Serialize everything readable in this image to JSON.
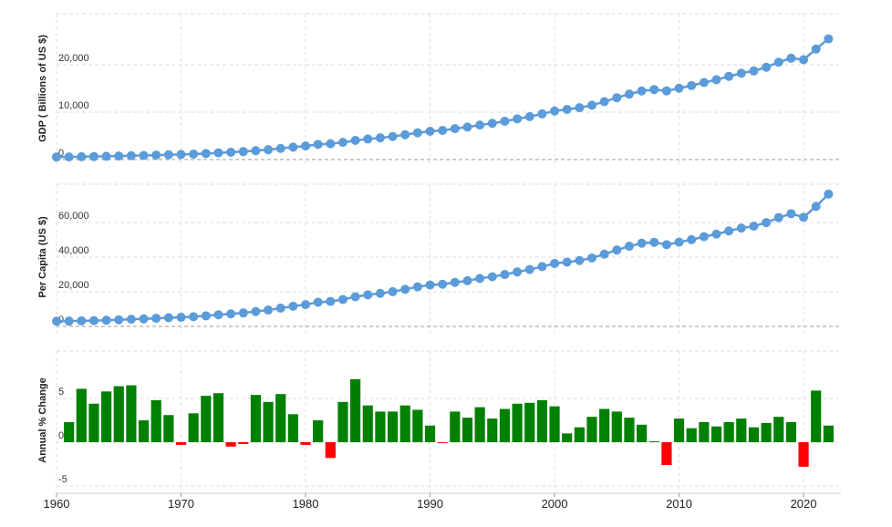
{
  "chart_data": [
    {
      "type": "line",
      "ylabel": "GDP ( Billions of US $)",
      "color": "#5b9bd9",
      "x": [
        1960,
        1961,
        1962,
        1963,
        1964,
        1965,
        1966,
        1967,
        1968,
        1969,
        1970,
        1971,
        1972,
        1973,
        1974,
        1975,
        1976,
        1977,
        1978,
        1979,
        1980,
        1981,
        1982,
        1983,
        1984,
        1985,
        1986,
        1987,
        1988,
        1989,
        1990,
        1991,
        1992,
        1993,
        1994,
        1995,
        1996,
        1997,
        1998,
        1999,
        2000,
        2001,
        2002,
        2003,
        2004,
        2005,
        2006,
        2007,
        2008,
        2009,
        2010,
        2011,
        2012,
        2013,
        2014,
        2015,
        2016,
        2017,
        2018,
        2019,
        2020,
        2021,
        2022
      ],
      "values": [
        543,
        563,
        605,
        638,
        686,
        744,
        815,
        862,
        943,
        1019,
        1073,
        1165,
        1282,
        1428,
        1549,
        1689,
        1877,
        2086,
        2357,
        2632,
        2857,
        3207,
        3343,
        3634,
        4037,
        4339,
        4580,
        4855,
        5236,
        5642,
        5963,
        6158,
        6520,
        6859,
        7287,
        7640,
        8073,
        8578,
        9063,
        9631,
        10251,
        10582,
        10936,
        11458,
        12214,
        13037,
        13815,
        14475,
        14770,
        14478,
        15049,
        15600,
        16254,
        16843,
        17551,
        18206,
        18695,
        19477,
        20533,
        21381,
        21060,
        23315,
        25464
      ],
      "xlim": [
        1960,
        2023
      ],
      "ylim": [
        0,
        30000
      ],
      "yticks": [
        0,
        {
          "value": 10000,
          "label": "10,000"
        },
        {
          "value": 20000,
          "label": "20,000"
        }
      ],
      "grid": true
    },
    {
      "type": "line",
      "ylabel": "Per Capita (US $)",
      "color": "#5b9bd9",
      "x": [
        1960,
        1961,
        1962,
        1963,
        1964,
        1965,
        1966,
        1967,
        1968,
        1969,
        1970,
        1971,
        1972,
        1973,
        1974,
        1975,
        1976,
        1977,
        1978,
        1979,
        1980,
        1981,
        1982,
        1983,
        1984,
        1985,
        1986,
        1987,
        1988,
        1989,
        1990,
        1991,
        1992,
        1993,
        1994,
        1995,
        1996,
        1997,
        1998,
        1999,
        2000,
        2001,
        2002,
        2003,
        2004,
        2005,
        2006,
        2007,
        2008,
        2009,
        2010,
        2011,
        2012,
        2013,
        2014,
        2015,
        2016,
        2017,
        2018,
        2019,
        2020,
        2021,
        2022
      ],
      "values": [
        3007,
        3067,
        3244,
        3375,
        3574,
        3828,
        4146,
        4336,
        4696,
        5032,
        5234,
        5609,
        6094,
        6726,
        7226,
        7801,
        8592,
        9453,
        10565,
        11674,
        12575,
        13976,
        14434,
        15544,
        17121,
        18237,
        19071,
        20039,
        21417,
        22857,
        23889,
        24342,
        25419,
        26387,
        27695,
        28691,
        29968,
        31459,
        32854,
        34515,
        36330,
        37134,
        38023,
        39496,
        41713,
        44115,
        46299,
        48050,
        48570,
        47195,
        48651,
        50066,
        51784,
        53291,
        55124,
        56763,
        57867,
        59915,
        62805,
        65095,
        63028,
        69288,
        76399
      ],
      "xlim": [
        1960,
        2023
      ],
      "ylim": [
        0,
        80000
      ],
      "yticks": [
        0,
        {
          "value": 20000,
          "label": "20,000"
        },
        {
          "value": 40000,
          "label": "40,000"
        },
        {
          "value": 60000,
          "label": "60,000"
        }
      ],
      "grid": true
    },
    {
      "type": "bar",
      "ylabel": "Annual % Change",
      "color": "#008000",
      "negative_color": "#ff0000",
      "x": [
        1961,
        1962,
        1963,
        1964,
        1965,
        1966,
        1967,
        1968,
        1969,
        1970,
        1971,
        1972,
        1973,
        1974,
        1975,
        1976,
        1977,
        1978,
        1979,
        1980,
        1981,
        1982,
        1983,
        1984,
        1985,
        1986,
        1987,
        1988,
        1989,
        1990,
        1991,
        1992,
        1993,
        1994,
        1995,
        1996,
        1997,
        1998,
        1999,
        2000,
        2001,
        2002,
        2003,
        2004,
        2005,
        2006,
        2007,
        2008,
        2009,
        2010,
        2011,
        2012,
        2013,
        2014,
        2015,
        2016,
        2017,
        2018,
        2019,
        2020,
        2021,
        2022
      ],
      "values": [
        2.3,
        6.1,
        4.4,
        5.8,
        6.4,
        6.5,
        2.5,
        4.8,
        3.1,
        -0.3,
        3.3,
        5.3,
        5.6,
        -0.5,
        -0.2,
        5.4,
        4.6,
        5.5,
        3.2,
        -0.3,
        2.5,
        -1.8,
        4.6,
        7.2,
        4.2,
        3.5,
        3.5,
        4.2,
        3.7,
        1.9,
        -0.1,
        3.5,
        2.8,
        4.0,
        2.7,
        3.8,
        4.4,
        4.5,
        4.8,
        4.1,
        1.0,
        1.7,
        2.9,
        3.8,
        3.5,
        2.8,
        2.0,
        0.1,
        -2.6,
        2.7,
        1.6,
        2.3,
        1.8,
        2.3,
        2.7,
        1.7,
        2.2,
        2.9,
        2.3,
        -2.8,
        5.9,
        1.9
      ],
      "xlim": [
        1960,
        2023
      ],
      "ylim": [
        -5,
        10
      ],
      "yticks": [
        -5,
        0,
        5
      ],
      "xticks": [
        1960,
        1970,
        1980,
        1990,
        2000,
        2010,
        2020
      ],
      "grid": true
    }
  ]
}
